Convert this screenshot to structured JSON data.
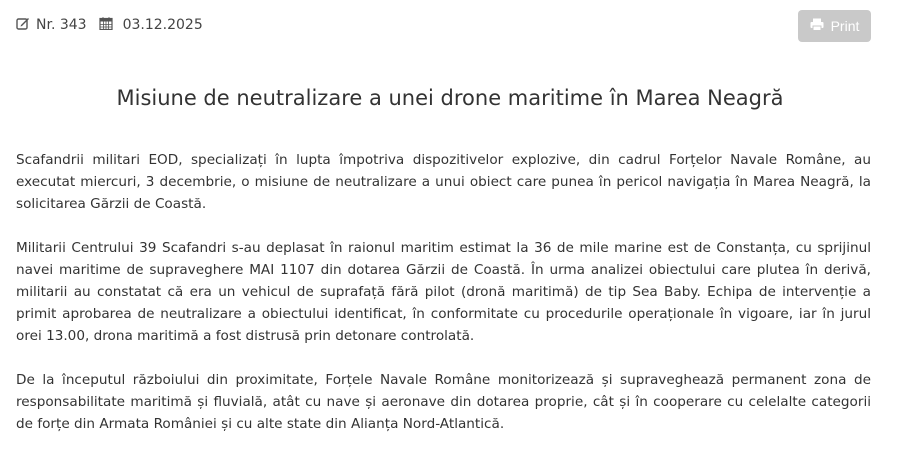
{
  "meta": {
    "number": "Nr. 343",
    "date": "03.12.2025"
  },
  "toolbar": {
    "print_label": "Print"
  },
  "article": {
    "title": "Misiune de neutralizare a unei drone maritime în Marea Neagră",
    "paragraphs": [
      "Scafandrii militari EOD, specializați în lupta împotriva dispozitivelor explozive, din cadrul Forțelor Navale Române, au executat miercuri, 3 decembrie, o misiune de neutralizare a unui obiect care punea în pericol navigația în Marea Neagră, la solicitarea Gărzii de Coastă.",
      "Militarii Centrului 39 Scafandri s-au deplasat în raionul maritim estimat la 36 de mile marine est de Constanța, cu sprijinul navei maritime de supraveghere MAI 1107 din dotarea Gărzii de Coastă. În urma analizei obiectului care plutea în derivă, militarii au constatat că era un vehicul de suprafață fără pilot (dronă maritimă) de tip Sea Baby. Echipa de intervenție a primit aprobarea de neutralizare a obiectului identificat, în conformitate cu procedurile operaționale în vigoare, iar în jurul orei 13.00, drona maritimă a fost distrusă prin detonare controlată.",
      "De la începutul războiului din proximitate, Forțele Navale Române monitorizează și supraveghează permanent zona de responsabilitate maritimă și fluvială, atât cu nave și aeronave din dotarea proprie, cât și în cooperare cu celelalte categorii de forțe din Armata României și cu alte state din Alianța Nord-Atlantică."
    ]
  }
}
